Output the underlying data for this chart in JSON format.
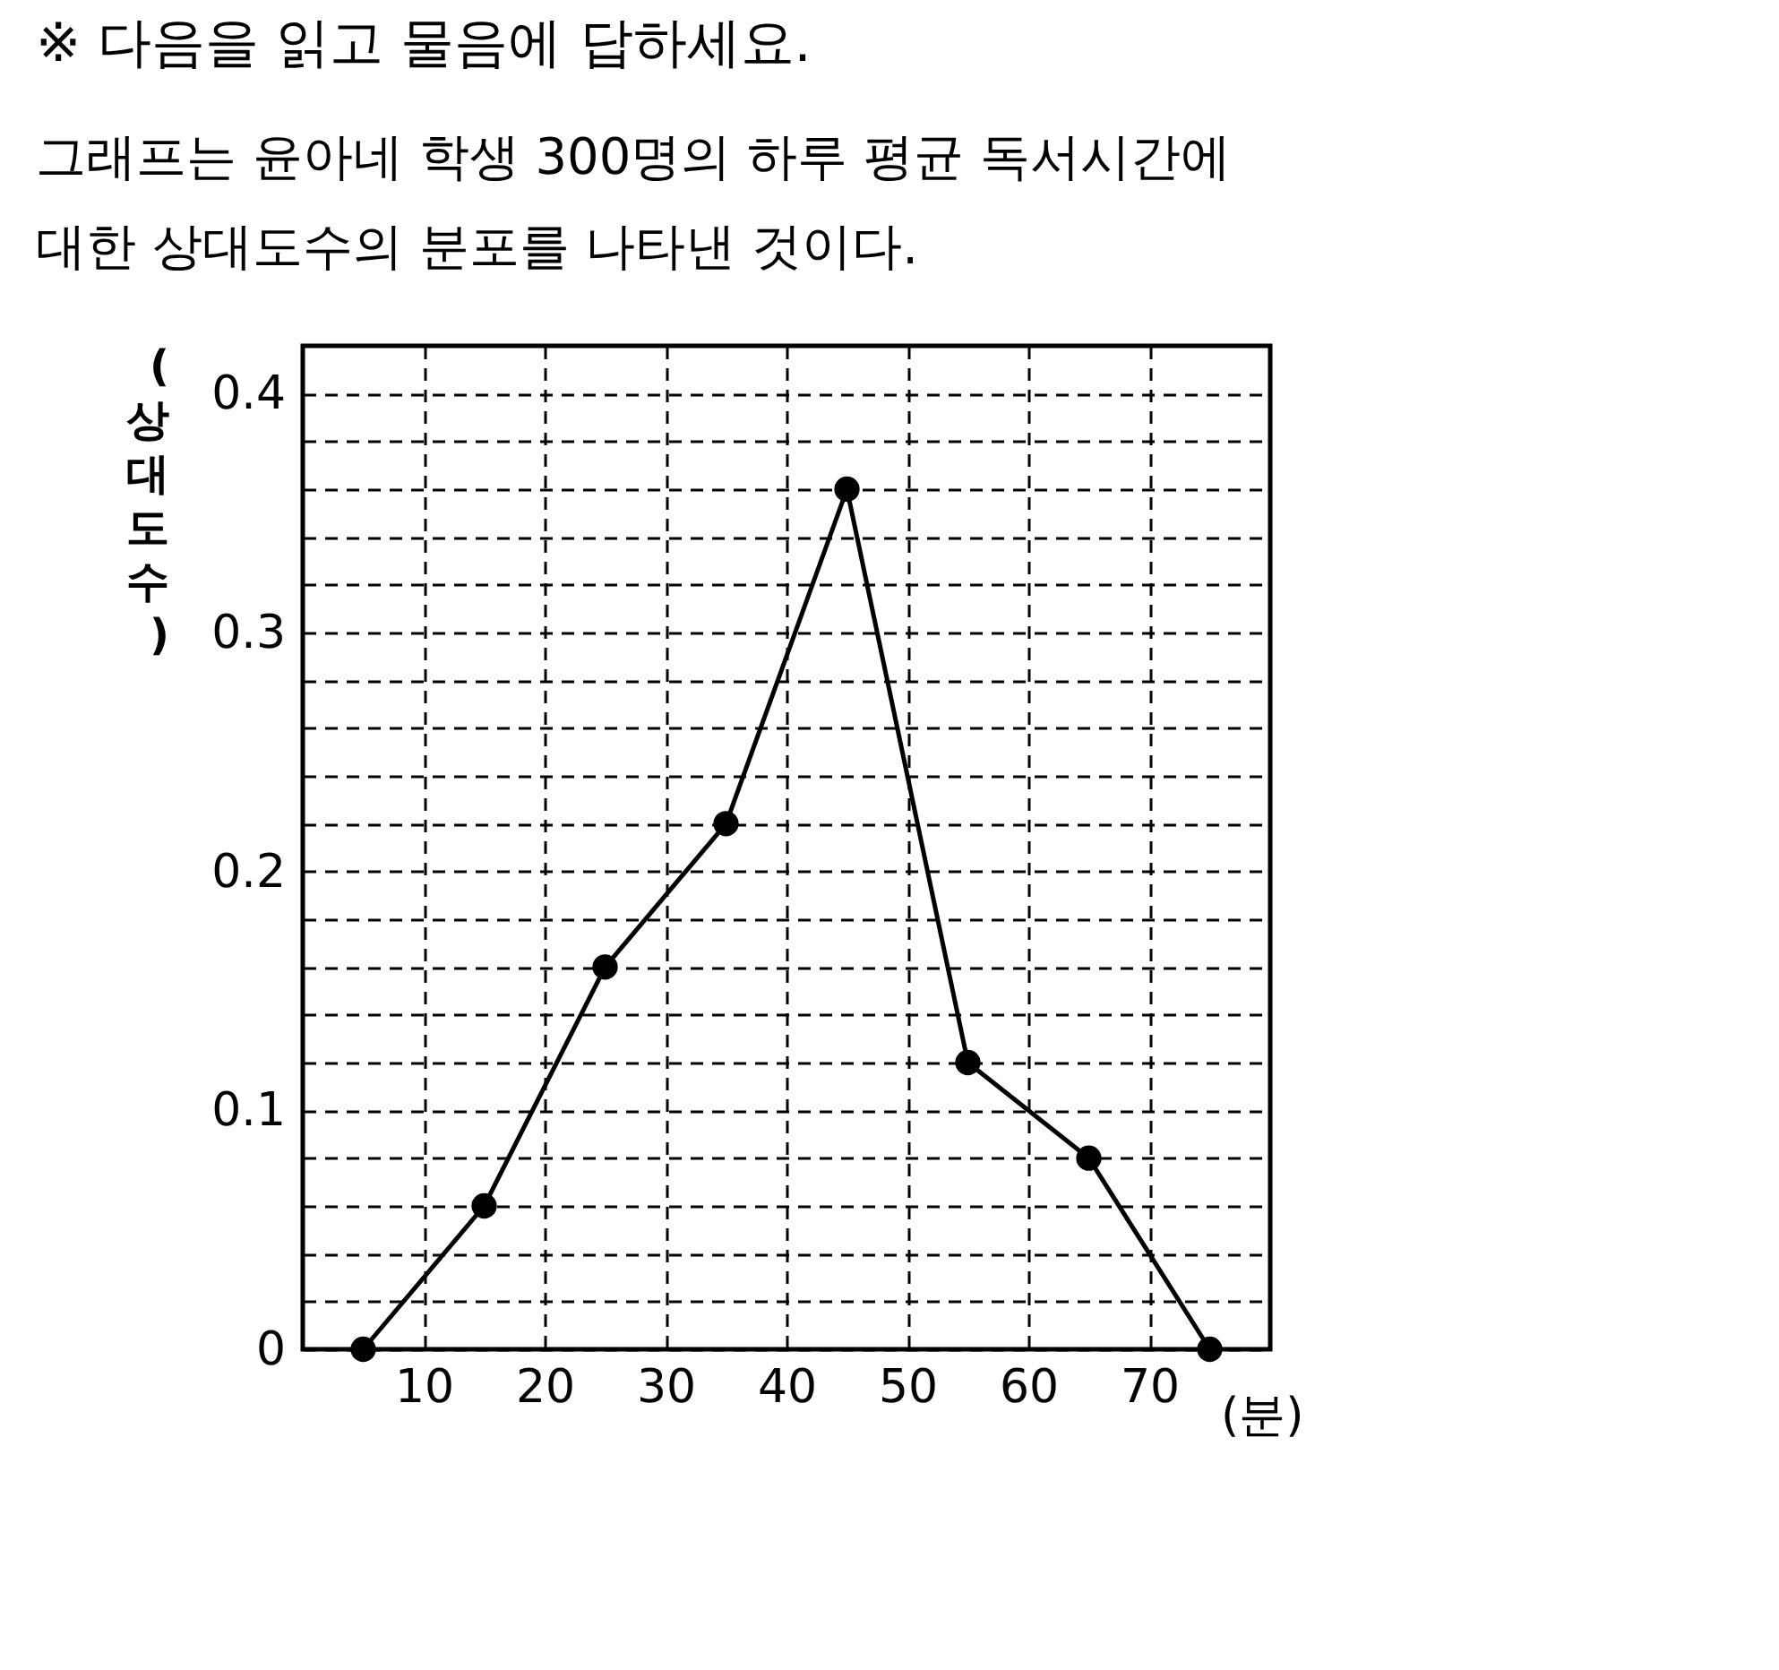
{
  "chart_data": {
    "type": "line",
    "title": "※ 다음을 읽고 물음에 답하세요.",
    "subtitle": "그래프는 윤아네 학생 300명의 하루 평균 독서시간에 대한 상대도수의 분포를 나타낸 것이다.",
    "xlabel": "(분)",
    "ylabel": "(상대도수)",
    "x": [
      5,
      15,
      25,
      35,
      45,
      55,
      65,
      75
    ],
    "values": [
      0,
      0.06,
      0.16,
      0.22,
      0.36,
      0.12,
      0.08,
      0
    ],
    "color": "#000000",
    "marker": "circle",
    "line_style": "solid",
    "xlim": [
      0,
      80
    ],
    "xticks": [
      10,
      20,
      30,
      40,
      50,
      60,
      70
    ],
    "ylim": [
      0,
      0.42
    ],
    "yticks": [
      0,
      {
        "value": 0.02,
        "label": null
      },
      {
        "value": 0.04,
        "label": null
      },
      {
        "value": 0.06,
        "label": null
      },
      {
        "value": 0.08,
        "label": null
      },
      0.1,
      {
        "value": 0.12,
        "label": null
      },
      {
        "value": 0.14,
        "label": null
      },
      {
        "value": 0.16,
        "label": null
      },
      {
        "value": 0.18,
        "label": null
      },
      0.2,
      {
        "value": 0.22,
        "label": null
      },
      {
        "value": 0.24,
        "label": null
      },
      {
        "value": 0.26,
        "label": null
      },
      {
        "value": 0.28,
        "label": null
      },
      0.3,
      {
        "value": 0.32,
        "label": null
      },
      {
        "value": 0.34,
        "label": null
      },
      {
        "value": 0.36,
        "label": null
      },
      {
        "value": 0.38,
        "label": null
      },
      0.4
    ],
    "grid": true
  }
}
